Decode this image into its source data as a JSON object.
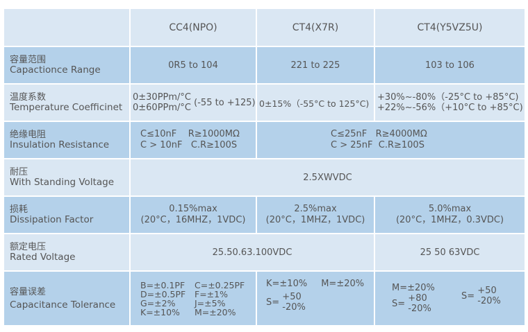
{
  "header": {
    "columns": [
      "CC4(NPO)",
      "CT4(X7R)",
      "CT4(Y5VZ5U)"
    ]
  },
  "rows": {
    "range": {
      "cn": "容量范围",
      "en": "Capactionce Range",
      "values": [
        "0R5 to 104",
        "221 to 225",
        "103 to 106"
      ]
    },
    "temp": {
      "cn": "温度系数",
      "en": "Temperature Coefficinet",
      "npo_line1": "0±30PPm/°C",
      "npo_line2": "0±60PPm/°C",
      "npo_range": "(-55 to +125)",
      "x7r": "0±15%（-55°C to 125°C)",
      "y5v_line1": "+30%~-80%（-25°C to +85°C)",
      "y5v_line2": "+22%~-56%（+10°C to +85°C)"
    },
    "insulation": {
      "cn": "绝缘电阻",
      "en": "Insulation Resistance",
      "npo_line1": "C≤10nF    R≥1000MΩ",
      "npo_line2": "C > 10nF   C.R≥100S",
      "other_line1": "C≤25nF   R≥4000MΩ",
      "other_line2": "C > 25nF  C.R≥100S"
    },
    "standing": {
      "cn": "耐压",
      "en": "With Standing Voltage",
      "value": "2.5XWVDC"
    },
    "dissipation": {
      "cn": "损耗",
      "en": "Dissipation Factor",
      "values": [
        [
          "0.15%max",
          "(20°C，16MHZ，1VDC)"
        ],
        [
          "2.5%max",
          "(20°C，1MHZ，1VDC)"
        ],
        [
          "5.0%max",
          "(20°C，1MHZ，0.3VDC)"
        ]
      ]
    },
    "rated": {
      "cn": "额定电压",
      "en": "Rated Voltage",
      "values": [
        "25.50.63.100VDC",
        "25 50 63VDC"
      ]
    },
    "tolerance": {
      "cn": "容量误差",
      "en": "Capacitance Tolerance",
      "npo": [
        "B=±0.1PF",
        "C=±0.25PF",
        "D=±0.5PF",
        "F=±1%",
        "G=±2%",
        "J=±5%",
        "K=±10%",
        "M=±20%"
      ],
      "x7r": {
        "k": "K=±10%",
        "m": "M=±20%",
        "s": "S=",
        "up": "+50",
        "down": "-20%"
      },
      "y5v": {
        "m": "M=±20%",
        "s1": "S=",
        "up1": "+80",
        "down1": "-20%",
        "s2": "S=",
        "up2": "+50",
        "down2": "-20%"
      }
    }
  }
}
